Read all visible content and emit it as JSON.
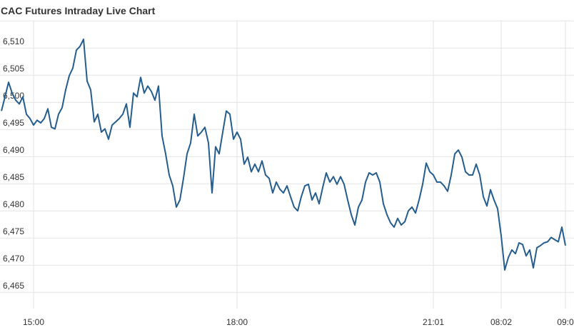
{
  "chart_data": {
    "type": "line",
    "title": "CAC Futures Intraday Live Chart",
    "categories": [
      null,
      null,
      null,
      null,
      null,
      null,
      null,
      null,
      null,
      "15:00",
      null,
      null,
      null,
      null,
      null,
      null,
      null,
      null,
      null,
      null,
      null,
      null,
      null,
      null,
      null,
      null,
      null,
      null,
      null,
      null,
      null,
      null,
      null,
      null,
      null,
      null,
      null,
      null,
      null,
      null,
      null,
      null,
      null,
      null,
      null,
      null,
      null,
      null,
      null,
      null,
      null,
      null,
      null,
      null,
      null,
      null,
      null,
      null,
      null,
      null,
      null,
      null,
      null,
      null,
      null,
      null,
      "18:00",
      null,
      null,
      null,
      null,
      null,
      null,
      null,
      null,
      null,
      null,
      null,
      null,
      null,
      null,
      null,
      null,
      null,
      null,
      null,
      null,
      null,
      null,
      null,
      null,
      null,
      null,
      null,
      null,
      null,
      null,
      null,
      null,
      null,
      null,
      null,
      null,
      null,
      null,
      null,
      null,
      null,
      null,
      null,
      null,
      null,
      null,
      null,
      null,
      null,
      null,
      null,
      null,
      null,
      null,
      "21:01",
      null,
      null,
      null,
      null,
      null,
      null,
      null,
      null,
      null,
      null,
      null,
      null,
      null,
      null,
      null,
      null,
      null,
      null,
      "08:02",
      null,
      null,
      null,
      null,
      null,
      null,
      null,
      null,
      null,
      null,
      null,
      null,
      null,
      null,
      null,
      null,
      null,
      "09:0"
    ],
    "values": [
      6498.4,
      6501,
      6503.7,
      6501.7,
      6500.4,
      6499.7,
      6501,
      6497.8,
      6497,
      6495.8,
      6496.7,
      6496.2,
      6497,
      6498.8,
      6495.4,
      6495.1,
      6497.8,
      6499,
      6502.3,
      6504.9,
      6506.3,
      6509.6,
      6510.3,
      6511.6,
      6503.9,
      6502.3,
      6496.4,
      6497.8,
      6494.5,
      6495.1,
      6493.2,
      6495.8,
      6496.4,
      6497,
      6497.8,
      6499.7,
      6495.4,
      6501.7,
      6501,
      6504.6,
      6501.7,
      6503,
      6502,
      6500.4,
      6503,
      6493.8,
      6490.5,
      6486.6,
      6484.6,
      6480.7,
      6482,
      6486,
      6490.5,
      6492.5,
      6497.8,
      6493.8,
      6494.5,
      6495.4,
      6492.5,
      6483.3,
      6491.8,
      6490.5,
      6494.5,
      6498.4,
      6497.8,
      6493.2,
      6494.5,
      6493.2,
      6488.6,
      6489.9,
      6487.2,
      6488.6,
      6487.2,
      6489.2,
      6486.6,
      6486,
      6483.3,
      6485.3,
      6484,
      6483.3,
      6484.6,
      6482.6,
      6480.7,
      6480,
      6482.6,
      6484.6,
      6484.9,
      6482,
      6483.3,
      6481.3,
      6484.3,
      6487,
      6485.3,
      6486.3,
      6484.9,
      6486.3,
      6484.9,
      6482,
      6479.3,
      6477.4,
      6480.7,
      6482,
      6485.3,
      6487,
      6486.6,
      6487,
      6485.3,
      6481.3,
      6479.3,
      6477.8,
      6477,
      6478.6,
      6477.4,
      6478,
      6480,
      6480.7,
      6479.6,
      6482,
      6484.9,
      6488.8,
      6487.2,
      6486.6,
      6485.3,
      6485.3,
      6484.6,
      6483.6,
      6486.6,
      6490.5,
      6491.2,
      6489.9,
      6487.2,
      6486.6,
      6486.6,
      6488.6,
      6486.6,
      6482.6,
      6480.9,
      6483.9,
      6482,
      6480.4,
      6475.4,
      6469.1,
      6471.4,
      6472.8,
      6472.1,
      6474.1,
      6473.8,
      6471.7,
      6472.8,
      6469.5,
      6473.2,
      6473.6,
      6474.1,
      6474.3,
      6475.1,
      6474.7,
      6474.3,
      6477,
      6473.6
    ],
    "color": "#245d8e",
    "ylim": [
      6462,
      6515
    ],
    "yticks": [
      {
        "value": 6465,
        "label": "6,465"
      },
      {
        "value": 6470,
        "label": "6,470"
      },
      {
        "value": 6475,
        "label": "6,475"
      },
      {
        "value": 6480,
        "label": "6,480"
      },
      {
        "value": 6485,
        "label": "6,485"
      },
      {
        "value": 6490,
        "label": "6,490"
      },
      {
        "value": 6495,
        "label": "6,495"
      },
      {
        "value": 6500,
        "label": "6,500"
      },
      {
        "value": 6505,
        "label": "6,505"
      },
      {
        "value": 6510,
        "label": "6,510"
      }
    ],
    "grid": true
  }
}
